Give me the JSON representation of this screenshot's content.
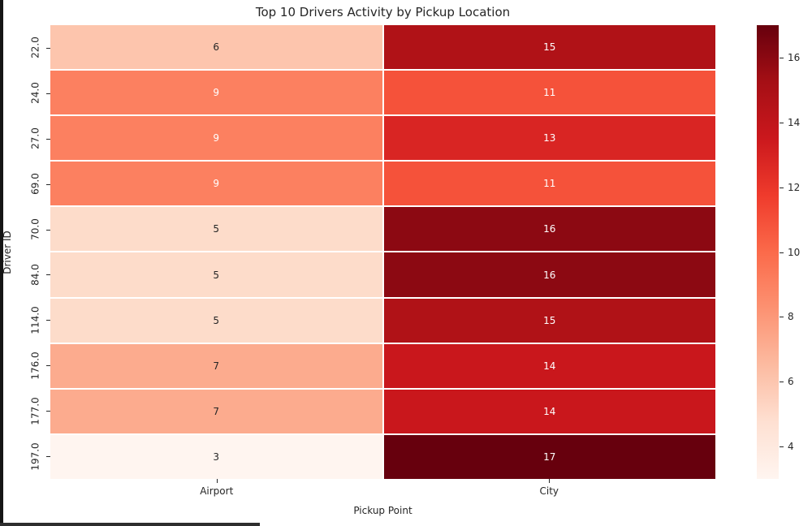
{
  "chart_data": {
    "type": "heatmap",
    "title": "Top 10 Drivers Activity by Pickup Location",
    "xlabel": "Pickup Point",
    "ylabel": "Driver ID",
    "columns": [
      "Airport",
      "City"
    ],
    "rows": [
      "22.0",
      "24.0",
      "27.0",
      "69.0",
      "70.0",
      "84.0",
      "114.0",
      "176.0",
      "177.0",
      "197.0"
    ],
    "values": [
      [
        6,
        15
      ],
      [
        9,
        11
      ],
      [
        9,
        13
      ],
      [
        9,
        11
      ],
      [
        5,
        16
      ],
      [
        5,
        16
      ],
      [
        5,
        15
      ],
      [
        7,
        14
      ],
      [
        7,
        14
      ],
      [
        3,
        17
      ]
    ],
    "vmin": 3,
    "vmax": 17,
    "colormap": "Reds",
    "colorbar_ticks": [
      4,
      6,
      8,
      10,
      12,
      14,
      16
    ],
    "colorbar_position": "right",
    "annotated": true,
    "grid": false
  },
  "style": {
    "value_colors": {
      "3": "#fff5f0",
      "5": "#fddcca",
      "6": "#fdc5ad",
      "7": "#fcab8e",
      "9": "#fc8060",
      "11": "#f5523a",
      "13": "#d92523",
      "14": "#c9171c",
      "15": "#b01217",
      "16": "#8c0912",
      "17": "#67000d"
    },
    "white_text_min_value": 9,
    "annotation_dark": "#262626",
    "annotation_light": "#ffffff",
    "axis_text_color": "#262626",
    "colorbar_gradient": [
      "#fff5f0",
      "#fee0d2",
      "#fcbba1",
      "#fc9272",
      "#fb6a4a",
      "#ef3b2c",
      "#cb181d",
      "#a50f15",
      "#67000d"
    ],
    "window_edge_left_color": "#151515",
    "window_edge_bottom_color": "#2e2e2e"
  }
}
